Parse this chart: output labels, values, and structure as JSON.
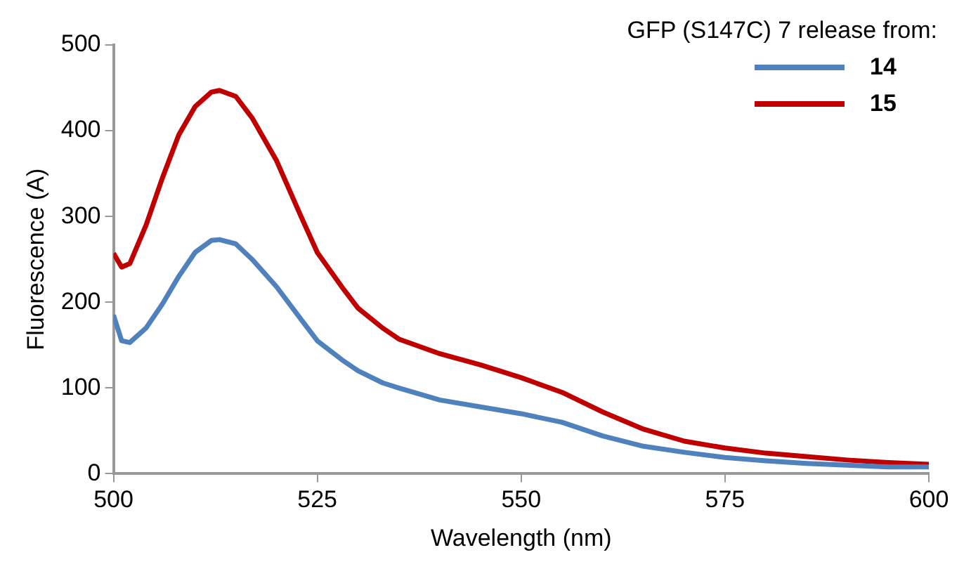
{
  "chart_data": {
    "type": "line",
    "xlabel": "Wavelength (nm)",
    "ylabel": "Fluorescence (A)",
    "legend_title": "GFP (S147C) 7 release from:",
    "legend": "top right",
    "xlim": [
      500,
      600
    ],
    "xticks": [
      500,
      525,
      550,
      575,
      600
    ],
    "ylim": [
      0,
      500
    ],
    "yticks": [
      0,
      100,
      200,
      300,
      400,
      500
    ],
    "grid": false,
    "marker": "none",
    "x": [
      500,
      501,
      502,
      504,
      506,
      508,
      510,
      512,
      513,
      515,
      517,
      520,
      523,
      525,
      528,
      530,
      533,
      535,
      540,
      545,
      550,
      555,
      560,
      565,
      570,
      575,
      580,
      585,
      590,
      595,
      600
    ],
    "series": [
      {
        "name": "14",
        "color": "#4f81bd",
        "values": [
          185,
          155,
          153,
          170,
          198,
          230,
          258,
          272,
          273,
          268,
          250,
          218,
          180,
          155,
          133,
          120,
          106,
          100,
          86,
          78,
          70,
          60,
          44,
          32,
          25,
          19,
          15,
          12,
          10,
          8,
          8
        ]
      },
      {
        "name": "15",
        "color": "#c00000",
        "values": [
          257,
          241,
          245,
          290,
          345,
          395,
          428,
          445,
          447,
          440,
          415,
          365,
          300,
          258,
          218,
          193,
          170,
          157,
          140,
          127,
          112,
          95,
          72,
          52,
          38,
          30,
          24,
          20,
          16,
          13,
          11
        ]
      }
    ]
  }
}
